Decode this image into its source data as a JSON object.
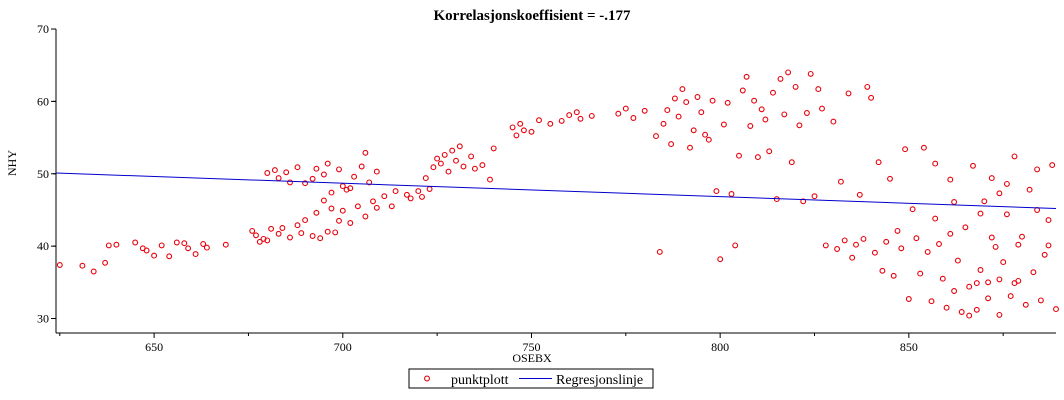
{
  "chart_data": {
    "type": "scatter",
    "title": "Korrelasjonskoeffisient =  -.177",
    "xlabel": "OSEBX",
    "ylabel": "NHY",
    "xlim": [
      624,
      889
    ],
    "ylim": [
      28,
      70
    ],
    "xticks": [
      650,
      700,
      750,
      800,
      850
    ],
    "yticks": [
      30,
      40,
      50,
      60,
      70
    ],
    "colors": {
      "points": "#e8000b",
      "line": "#0000cc",
      "axis": "#000000"
    },
    "legend": {
      "placement": "bottom-center",
      "entries": [
        "punktplott",
        "Regresjonslinje"
      ]
    },
    "series": [
      {
        "name": "punktplott",
        "kind": "scatter",
        "points": [
          [
            625,
            37.4
          ],
          [
            631,
            37.3
          ],
          [
            634,
            36.5
          ],
          [
            637,
            37.7
          ],
          [
            638,
            40.1
          ],
          [
            640,
            40.2
          ],
          [
            645,
            40.5
          ],
          [
            647,
            39.7
          ],
          [
            648,
            39.4
          ],
          [
            650,
            38.7
          ],
          [
            652,
            40.1
          ],
          [
            654,
            38.6
          ],
          [
            656,
            40.5
          ],
          [
            658,
            40.4
          ],
          [
            659,
            39.7
          ],
          [
            661,
            38.9
          ],
          [
            663,
            40.3
          ],
          [
            664,
            39.8
          ],
          [
            669,
            40.2
          ],
          [
            676,
            42.1
          ],
          [
            677,
            41.5
          ],
          [
            678,
            40.6
          ],
          [
            679,
            41.0
          ],
          [
            680,
            40.8
          ],
          [
            681,
            42.4
          ],
          [
            683,
            41.7
          ],
          [
            684,
            42.5
          ],
          [
            686,
            41.2
          ],
          [
            688,
            42.9
          ],
          [
            689,
            41.8
          ],
          [
            690,
            43.6
          ],
          [
            692,
            41.4
          ],
          [
            693,
            44.6
          ],
          [
            694,
            41.1
          ],
          [
            695,
            46.3
          ],
          [
            696,
            42.0
          ],
          [
            697,
            45.2
          ],
          [
            698,
            41.9
          ],
          [
            699,
            43.5
          ],
          [
            700,
            44.9
          ],
          [
            702,
            43.2
          ],
          [
            704,
            45.5
          ],
          [
            706,
            44.1
          ],
          [
            708,
            46.2
          ],
          [
            709,
            45.3
          ],
          [
            711,
            46.9
          ],
          [
            713,
            45.5
          ],
          [
            714,
            47.6
          ],
          [
            690,
            48.7
          ],
          [
            692,
            49.3
          ],
          [
            693,
            50.7
          ],
          [
            695,
            49.9
          ],
          [
            696,
            51.4
          ],
          [
            697,
            47.4
          ],
          [
            699,
            50.6
          ],
          [
            700,
            48.3
          ],
          [
            701,
            47.8
          ],
          [
            702,
            48.0
          ],
          [
            703,
            49.6
          ],
          [
            705,
            51.0
          ],
          [
            706,
            52.9
          ],
          [
            707,
            48.8
          ],
          [
            709,
            50.3
          ],
          [
            683,
            49.4
          ],
          [
            685,
            50.2
          ],
          [
            686,
            48.8
          ],
          [
            688,
            50.9
          ],
          [
            680,
            50.1
          ],
          [
            682,
            50.5
          ],
          [
            717,
            47.1
          ],
          [
            718,
            46.6
          ],
          [
            720,
            47.6
          ],
          [
            721,
            46.8
          ],
          [
            722,
            49.4
          ],
          [
            723,
            47.9
          ],
          [
            724,
            50.9
          ],
          [
            725,
            52.1
          ],
          [
            726,
            51.4
          ],
          [
            727,
            52.6
          ],
          [
            728,
            50.3
          ],
          [
            729,
            53.2
          ],
          [
            730,
            51.8
          ],
          [
            731,
            53.8
          ],
          [
            732,
            51.0
          ],
          [
            734,
            52.4
          ],
          [
            735,
            50.7
          ],
          [
            737,
            51.2
          ],
          [
            739,
            49.2
          ],
          [
            740,
            53.5
          ],
          [
            745,
            56.4
          ],
          [
            746,
            55.3
          ],
          [
            747,
            56.9
          ],
          [
            748,
            56.0
          ],
          [
            750,
            55.8
          ],
          [
            752,
            57.4
          ],
          [
            755,
            56.9
          ],
          [
            758,
            57.3
          ],
          [
            760,
            58.1
          ],
          [
            762,
            58.5
          ],
          [
            763,
            57.6
          ],
          [
            766,
            58.0
          ],
          [
            773,
            58.3
          ],
          [
            775,
            59.0
          ],
          [
            777,
            57.7
          ],
          [
            780,
            58.7
          ],
          [
            783,
            55.2
          ],
          [
            784,
            39.2
          ],
          [
            785,
            56.9
          ],
          [
            786,
            58.8
          ],
          [
            787,
            54.1
          ],
          [
            788,
            60.4
          ],
          [
            789,
            57.9
          ],
          [
            790,
            61.7
          ],
          [
            791,
            59.9
          ],
          [
            792,
            53.6
          ],
          [
            793,
            56.0
          ],
          [
            794,
            60.6
          ],
          [
            795,
            58.5
          ],
          [
            796,
            55.4
          ],
          [
            797,
            54.7
          ],
          [
            798,
            60.1
          ],
          [
            799,
            47.6
          ],
          [
            800,
            38.2
          ],
          [
            801,
            56.8
          ],
          [
            802,
            59.8
          ],
          [
            803,
            47.2
          ],
          [
            804,
            40.1
          ],
          [
            805,
            52.5
          ],
          [
            806,
            61.5
          ],
          [
            807,
            63.4
          ],
          [
            808,
            56.6
          ],
          [
            809,
            60.1
          ],
          [
            810,
            52.3
          ],
          [
            811,
            58.9
          ],
          [
            812,
            57.5
          ],
          [
            813,
            53.1
          ],
          [
            814,
            61.2
          ],
          [
            815,
            46.5
          ],
          [
            816,
            63.1
          ],
          [
            817,
            58.2
          ],
          [
            818,
            64.0
          ],
          [
            819,
            51.6
          ],
          [
            820,
            62.0
          ],
          [
            821,
            56.7
          ],
          [
            822,
            46.2
          ],
          [
            823,
            58.4
          ],
          [
            824,
            63.8
          ],
          [
            825,
            46.9
          ],
          [
            826,
            61.7
          ],
          [
            827,
            59.0
          ],
          [
            828,
            40.1
          ],
          [
            830,
            57.2
          ],
          [
            831,
            39.6
          ],
          [
            832,
            48.9
          ],
          [
            833,
            40.8
          ],
          [
            834,
            61.1
          ],
          [
            835,
            38.4
          ],
          [
            836,
            40.2
          ],
          [
            837,
            47.1
          ],
          [
            838,
            41.0
          ],
          [
            839,
            62.0
          ],
          [
            840,
            60.5
          ],
          [
            841,
            39.1
          ],
          [
            842,
            51.6
          ],
          [
            843,
            36.6
          ],
          [
            844,
            40.6
          ],
          [
            845,
            49.3
          ],
          [
            846,
            35.9
          ],
          [
            847,
            42.1
          ],
          [
            848,
            39.7
          ],
          [
            849,
            53.4
          ],
          [
            850,
            32.7
          ],
          [
            851,
            45.1
          ],
          [
            852,
            41.1
          ],
          [
            853,
            36.2
          ],
          [
            854,
            53.6
          ],
          [
            855,
            39.2
          ],
          [
            856,
            32.4
          ],
          [
            857,
            43.8
          ],
          [
            858,
            40.3
          ],
          [
            859,
            35.5
          ],
          [
            860,
            31.5
          ],
          [
            861,
            41.7
          ],
          [
            862,
            33.8
          ],
          [
            863,
            38.0
          ],
          [
            864,
            30.9
          ],
          [
            865,
            42.6
          ],
          [
            866,
            34.4
          ],
          [
            867,
            51.1
          ],
          [
            868,
            31.2
          ],
          [
            869,
            36.7
          ],
          [
            870,
            46.2
          ],
          [
            871,
            32.8
          ],
          [
            872,
            49.4
          ],
          [
            873,
            39.9
          ],
          [
            874,
            30.5
          ],
          [
            875,
            37.8
          ],
          [
            876,
            48.6
          ],
          [
            877,
            33.1
          ],
          [
            878,
            52.4
          ],
          [
            879,
            35.2
          ],
          [
            880,
            41.3
          ],
          [
            881,
            31.9
          ],
          [
            882,
            47.8
          ],
          [
            883,
            36.4
          ],
          [
            884,
            50.6
          ],
          [
            885,
            32.5
          ],
          [
            886,
            38.8
          ],
          [
            887,
            43.6
          ],
          [
            888,
            51.2
          ],
          [
            889,
            31.3
          ],
          [
            866,
            30.4
          ],
          [
            868,
            34.9
          ],
          [
            871,
            35.0
          ],
          [
            874,
            35.4
          ],
          [
            878,
            34.9
          ],
          [
            872,
            41.2
          ],
          [
            876,
            44.4
          ],
          [
            879,
            40.2
          ],
          [
            862,
            46.1
          ],
          [
            857,
            51.4
          ],
          [
            861,
            49.2
          ],
          [
            869,
            44.5
          ],
          [
            874,
            47.3
          ],
          [
            884,
            45.0
          ],
          [
            887,
            40.1
          ]
        ]
      },
      {
        "name": "Regresjonslinje",
        "kind": "line",
        "points": [
          [
            624,
            50.1
          ],
          [
            889,
            45.2
          ]
        ]
      }
    ]
  }
}
